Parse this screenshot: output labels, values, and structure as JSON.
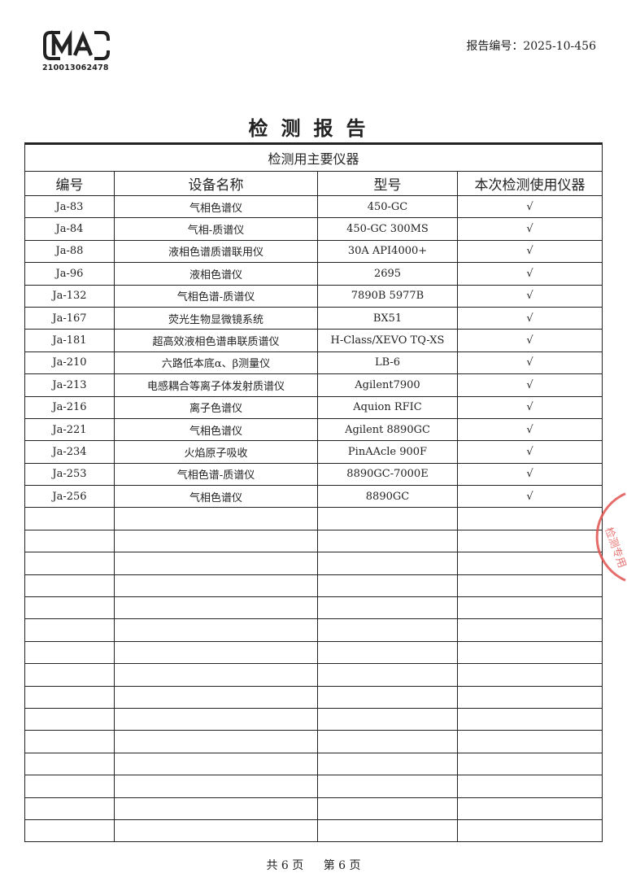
{
  "header": {
    "logo_text": "CMA",
    "logo_number": "210013062478",
    "report_number_label": "报告编号：",
    "report_number": "2025-10-456"
  },
  "title": "检测报告",
  "table": {
    "caption": "检测用主要仪器",
    "columns": [
      "编号",
      "设备名称",
      "型号",
      "本次检测使用仪器"
    ],
    "rows": [
      {
        "id": "Ja-83",
        "name": "气相色谱仪",
        "model": "450-GC",
        "used": "√"
      },
      {
        "id": "Ja-84",
        "name": "气相-质谱仪",
        "model": "450-GC 300MS",
        "used": "√"
      },
      {
        "id": "Ja-88",
        "name": "液相色谱质谱联用仪",
        "model": "30A API4000+",
        "used": "√"
      },
      {
        "id": "Ja-96",
        "name": "液相色谱仪",
        "model": "2695",
        "used": "√"
      },
      {
        "id": "Ja-132",
        "name": "气相色谱-质谱仪",
        "model": "7890B 5977B",
        "used": "√"
      },
      {
        "id": "Ja-167",
        "name": "荧光生物显微镜系统",
        "model": "BX51",
        "used": "√"
      },
      {
        "id": "Ja-181",
        "name": "超高效液相色谱串联质谱仪",
        "model": "H-Class/XEVO TQ-XS",
        "used": "√"
      },
      {
        "id": "Ja-210",
        "name": "六路低本底α、β测量仪",
        "model": "LB-6",
        "used": "√"
      },
      {
        "id": "Ja-213",
        "name": "电感耦合等离子体发射质谱仪",
        "model": "Agilent7900",
        "used": "√"
      },
      {
        "id": "Ja-216",
        "name": "离子色谱仪",
        "model": "Aquion RFIC",
        "used": "√"
      },
      {
        "id": "Ja-221",
        "name": "气相色谱仪",
        "model": "Agilent 8890GC",
        "used": "√"
      },
      {
        "id": "Ja-234",
        "name": "火焰原子吸收",
        "model": "PinAAcle 900F",
        "used": "√"
      },
      {
        "id": "Ja-253",
        "name": "气相色谱-质谱仪",
        "model": "8890GC-7000E",
        "used": "√"
      },
      {
        "id": "Ja-256",
        "name": "气相色谱仪",
        "model": "8890GC",
        "used": "√"
      }
    ]
  },
  "footer": {
    "total_pages": "共 6 页",
    "current_page": "第 6 页"
  },
  "colors": {
    "stamp": "#e0524f",
    "ink": "#222222"
  }
}
